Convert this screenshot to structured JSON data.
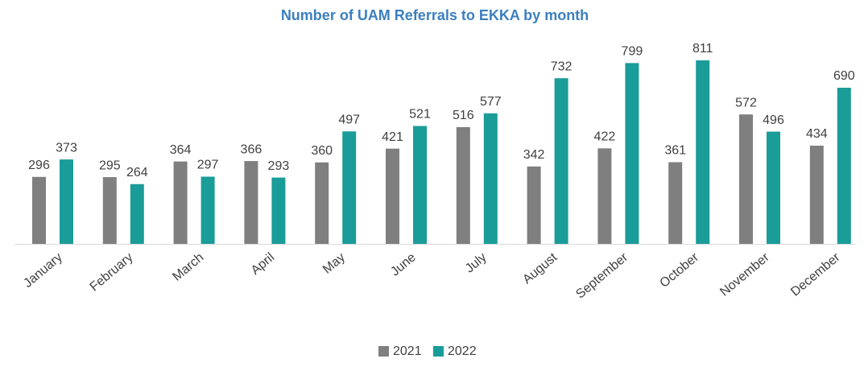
{
  "chart_data": {
    "type": "bar",
    "title": "Number of UAM Referrals to EKKA by month",
    "categories": [
      "January",
      "February",
      "March",
      "April",
      "May",
      "June",
      "July",
      "August",
      "September",
      "October",
      "November",
      "December"
    ],
    "series": [
      {
        "name": "2021",
        "color": "#7f7f7f",
        "values": [
          296,
          295,
          364,
          366,
          360,
          421,
          516,
          342,
          422,
          361,
          572,
          434
        ]
      },
      {
        "name": "2022",
        "color": "#1a9c99",
        "values": [
          373,
          264,
          297,
          293,
          497,
          521,
          577,
          732,
          799,
          811,
          496,
          690
        ]
      }
    ],
    "legend": "bottom"
  }
}
